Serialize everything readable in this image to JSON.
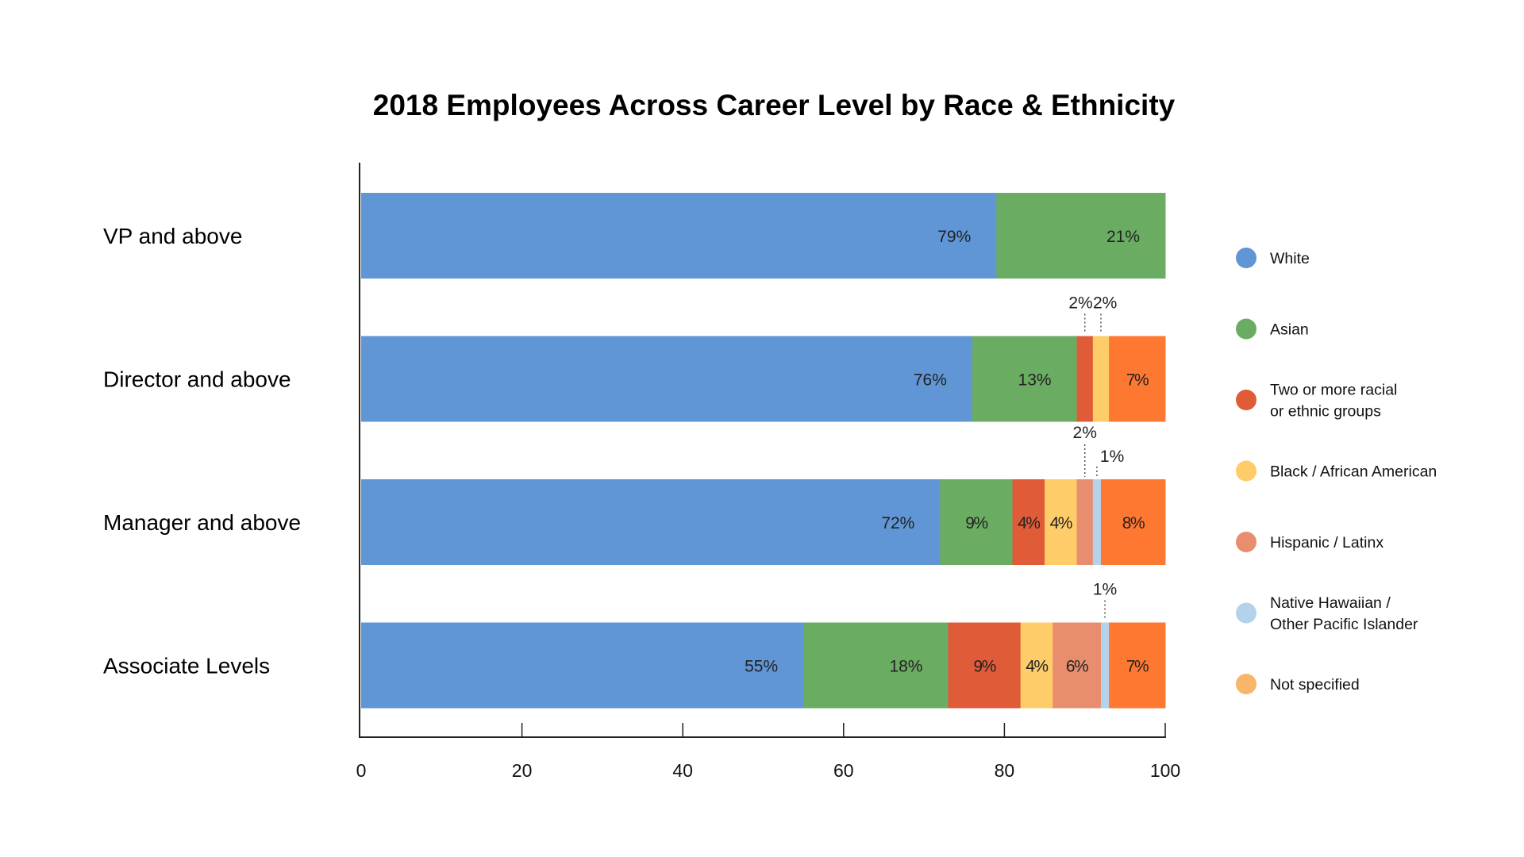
{
  "chart_data": {
    "type": "bar",
    "orientation": "horizontal",
    "stacked": true,
    "title": "2018 Employees Across Career Level by Race & Ethnicity",
    "xlabel": "",
    "ylabel": "",
    "xlim": [
      0,
      100
    ],
    "xticks": [
      0,
      20,
      40,
      60,
      80,
      100
    ],
    "grid": false,
    "legend_position": "right",
    "categories": [
      "VP and above",
      "Director and above",
      "Manager and above",
      "Associate Levels"
    ],
    "series": [
      {
        "name": "White",
        "legend_lines": [
          "White"
        ],
        "color": "#6096D5",
        "legend_color": "#6096D5",
        "values": [
          79,
          76,
          72,
          55
        ],
        "labels": [
          "79%",
          "76%",
          "72%",
          "55%"
        ]
      },
      {
        "name": "Asian",
        "legend_lines": [
          "Asian"
        ],
        "color": "#6BAC63",
        "legend_color": "#6BAC63",
        "values": [
          21,
          13,
          9,
          18
        ],
        "labels": [
          "21%",
          "13%",
          "9%",
          "18%"
        ]
      },
      {
        "name": "Two or more racial or ethnic groups",
        "legend_lines": [
          "Two or more racial",
          "or ethnic groups"
        ],
        "color": "#E05B38",
        "legend_color": "#E05B38",
        "values": [
          0,
          2,
          4,
          9
        ],
        "labels": [
          "",
          "2%",
          "4%",
          "9%"
        ]
      },
      {
        "name": "Black / African American",
        "legend_lines": [
          "Black / African American"
        ],
        "color": "#FECC68",
        "legend_color": "#FECC68",
        "values": [
          0,
          2,
          4,
          4
        ],
        "labels": [
          "",
          "2%",
          "4%",
          "4%"
        ]
      },
      {
        "name": "Hispanic /  Latinx",
        "legend_lines": [
          "Hispanic /  Latinx"
        ],
        "color": "#E88E6E",
        "legend_color": "#E88E6E",
        "values": [
          0,
          0,
          2,
          6
        ],
        "labels": [
          "",
          "",
          "2%",
          "6%"
        ]
      },
      {
        "name": "Native Hawaiian / Other Pacific Islander",
        "legend_lines": [
          "Native Hawaiian /",
          "Other Pacific Islander"
        ],
        "color": "#B4D3EA",
        "legend_color": "#B4D3EA",
        "values": [
          0,
          0,
          1,
          1
        ],
        "labels": [
          "",
          "",
          "1%",
          "1%"
        ]
      },
      {
        "name": "Not specified",
        "legend_lines": [
          "Not specified"
        ],
        "color": "#FE7832",
        "legend_color": "#F9B56A",
        "values": [
          0,
          7,
          8,
          7
        ],
        "labels": [
          "",
          "7%",
          "8%",
          "7%"
        ]
      }
    ],
    "callouts": [
      {
        "category": 1,
        "series": 2,
        "text": "2%"
      },
      {
        "category": 1,
        "series": 3,
        "text": "2%"
      },
      {
        "category": 2,
        "series": 4,
        "text": "2%"
      },
      {
        "category": 2,
        "series": 5,
        "text": "1%"
      },
      {
        "category": 3,
        "series": 5,
        "text": "1%"
      }
    ]
  }
}
